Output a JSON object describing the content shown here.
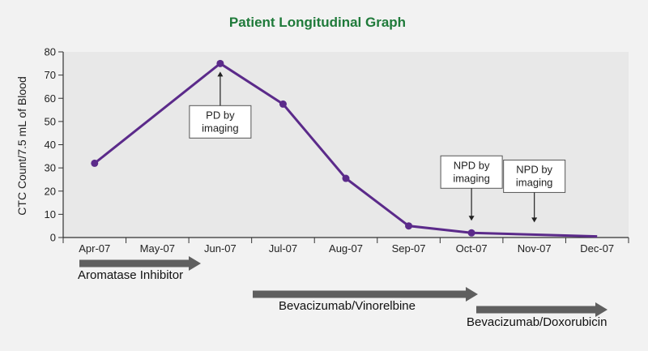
{
  "chart_data": {
    "type": "line",
    "title": "Patient Longitudinal Graph",
    "ylabel": "CTC Count/7.5 mL of Blood",
    "xlabel": "",
    "categories": [
      "Apr-07",
      "May-07",
      "Jun-07",
      "Jul-07",
      "Aug-07",
      "Sep-07",
      "Oct-07",
      "Nov-07",
      "Dec-07"
    ],
    "ylim": [
      0,
      80
    ],
    "yticks": [
      0,
      10,
      20,
      30,
      40,
      50,
      60,
      70,
      80
    ],
    "grid": false,
    "series": [
      {
        "points": [
          {
            "x": "Apr-07",
            "y": 32
          },
          {
            "x": "Jun-07",
            "y": 75
          },
          {
            "x": "Jul-07",
            "y": 57.5
          },
          {
            "x": "Aug-07",
            "y": 25.5
          },
          {
            "x": "Sep-07",
            "y": 5
          },
          {
            "x": "Oct-07",
            "y": 2
          },
          {
            "x": "Dec-07",
            "y": 0.5
          }
        ]
      }
    ],
    "annotations": [
      {
        "lines": [
          "PD by",
          "imaging"
        ],
        "x": "Jun-07"
      },
      {
        "lines": [
          "NPD by",
          "imaging"
        ],
        "x": "Oct-07"
      },
      {
        "lines": [
          "NPD by",
          "imaging"
        ],
        "x": "Nov-07"
      }
    ],
    "therapies": [
      {
        "label": "Aromatase Inhibitor",
        "from": "Apr-07",
        "to": "Jun-07"
      },
      {
        "label": "Bevacizumab/Vinorelbine",
        "from": "Jul-07",
        "to": "Oct-07"
      },
      {
        "label": "Bevacizumab/Doxorubicin",
        "from": "Oct-07",
        "to": "Dec-07"
      }
    ],
    "colors": {
      "title": "#1f7a3a",
      "line": "#5b2a8a",
      "therapy_arrow": "#5f5f5f",
      "axis": "#333333",
      "plot_background": "#e8e8e8"
    }
  }
}
